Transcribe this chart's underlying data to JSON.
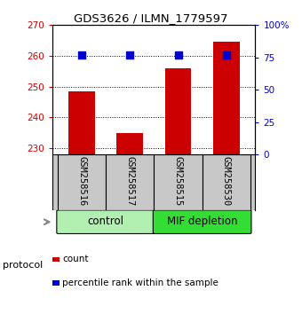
{
  "title": "GDS3626 / ILMN_1779597",
  "samples": [
    "GSM258516",
    "GSM258517",
    "GSM258515",
    "GSM258530"
  ],
  "bar_values": [
    248.5,
    235.0,
    256.0,
    264.5
  ],
  "percentile_values": [
    77,
    77,
    77,
    77
  ],
  "bar_color": "#cc0000",
  "dot_color": "#0000cc",
  "ylim_left": [
    228,
    270
  ],
  "yticks_left": [
    230,
    240,
    250,
    260,
    270
  ],
  "ylim_right": [
    0,
    100
  ],
  "yticks_right": [
    0,
    25,
    50,
    75,
    100
  ],
  "ytick_labels_right": [
    "0",
    "25",
    "50",
    "75",
    "100%"
  ],
  "groups": [
    {
      "label": "control",
      "color": "#b2f0b2"
    },
    {
      "label": "MIF depletion",
      "color": "#33dd33"
    }
  ],
  "legend_bar_label": "count",
  "legend_dot_label": "percentile rank within the sample",
  "background_color": "#ffffff",
  "sample_box_color": "#c8c8c8",
  "bar_width": 0.55,
  "dot_size": 35
}
